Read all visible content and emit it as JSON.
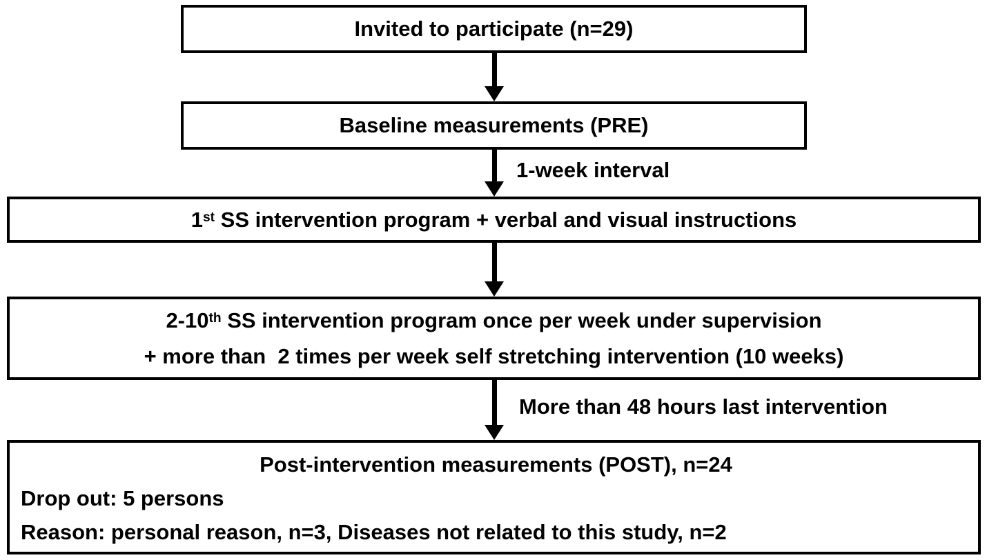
{
  "palette": {
    "background": "#ffffff",
    "border": "#000000",
    "text": "#000000"
  },
  "flowchart": {
    "boxes": [
      {
        "id": "invited",
        "text": "Invited to participate (n=29)"
      },
      {
        "id": "baseline",
        "text": "Baseline measurements (PRE)"
      },
      {
        "id": "first-intervention",
        "prefix": "1",
        "sup": "st",
        "rest": " SS intervention program + verbal and visual instructions"
      },
      {
        "id": "intervention-2-10",
        "line1": {
          "prefix": "2-10",
          "sup": "th",
          "rest": " SS intervention program once per week under supervision"
        },
        "line2": "+ more than  2 times per week self stretching intervention (10 weeks)"
      },
      {
        "id": "post-intervention",
        "line1": "Post-intervention measurements (POST), n=24",
        "line2": "Drop out: 5 persons",
        "line3": "Reason: personal reason, n=3, Diseases not related to this study, n=2"
      }
    ],
    "arrows": [
      {
        "from": "invited",
        "to": "baseline",
        "label": ""
      },
      {
        "from": "baseline",
        "to": "first-intervention",
        "label": "1-week interval"
      },
      {
        "from": "first-intervention",
        "to": "intervention-2-10",
        "label": ""
      },
      {
        "from": "intervention-2-10",
        "to": "post-intervention",
        "label": "More than 48 hours last intervention"
      }
    ]
  }
}
